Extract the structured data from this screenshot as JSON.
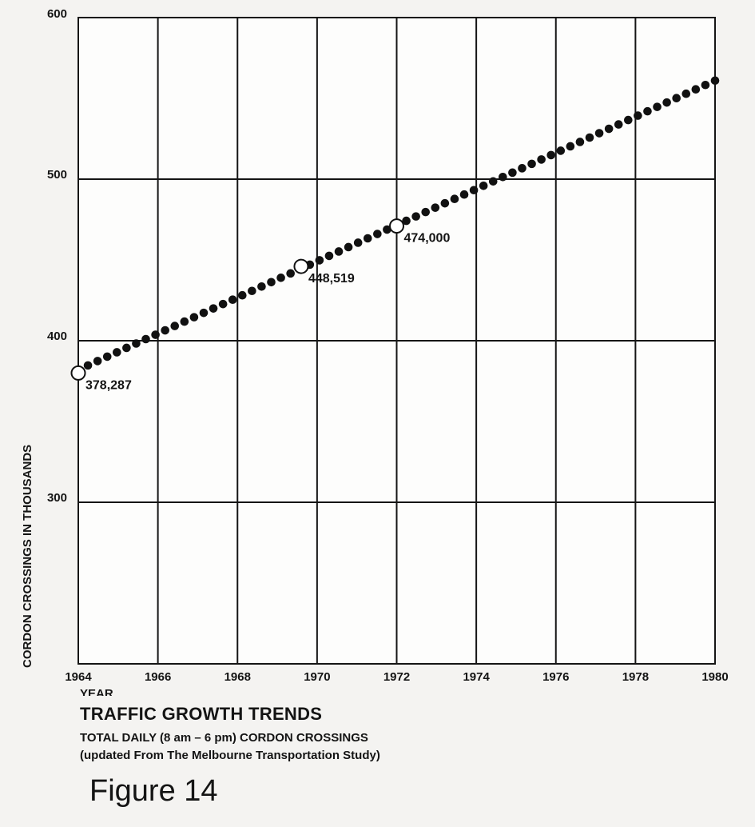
{
  "chart_data": {
    "type": "line",
    "title": "TRAFFIC GROWTH TRENDS",
    "subtitle_lines": [
      "TOTAL DAILY (8 am – 6 pm) CORDON CROSSINGS",
      "(updated From The Melbourne Transportation Study)"
    ],
    "xlabel": "YEAR",
    "ylabel": "CORDON CROSSINGS IN THOUSANDS",
    "xlim": [
      1964,
      1980
    ],
    "ylim": [
      200,
      600
    ],
    "x_ticks": [
      "1964",
      "1966",
      "1968",
      "1970",
      "1972",
      "1974",
      "1976",
      "1978",
      "1980"
    ],
    "y_ticks": [
      "300",
      "400",
      "500",
      "600"
    ],
    "grid": true,
    "series": [
      {
        "style": "dotted-trend",
        "color": "#111111",
        "x": [
          1964,
          1980
        ],
        "y": [
          382,
          561
        ]
      }
    ],
    "annotations": [
      {
        "x": 1964.0,
        "y": 380,
        "label": "378,287"
      },
      {
        "x": 1969.6,
        "y": 446,
        "label": "448,519"
      },
      {
        "x": 1972.0,
        "y": 471,
        "label": "474,000"
      }
    ]
  },
  "caption": {
    "figure_label": "Figure 14"
  }
}
